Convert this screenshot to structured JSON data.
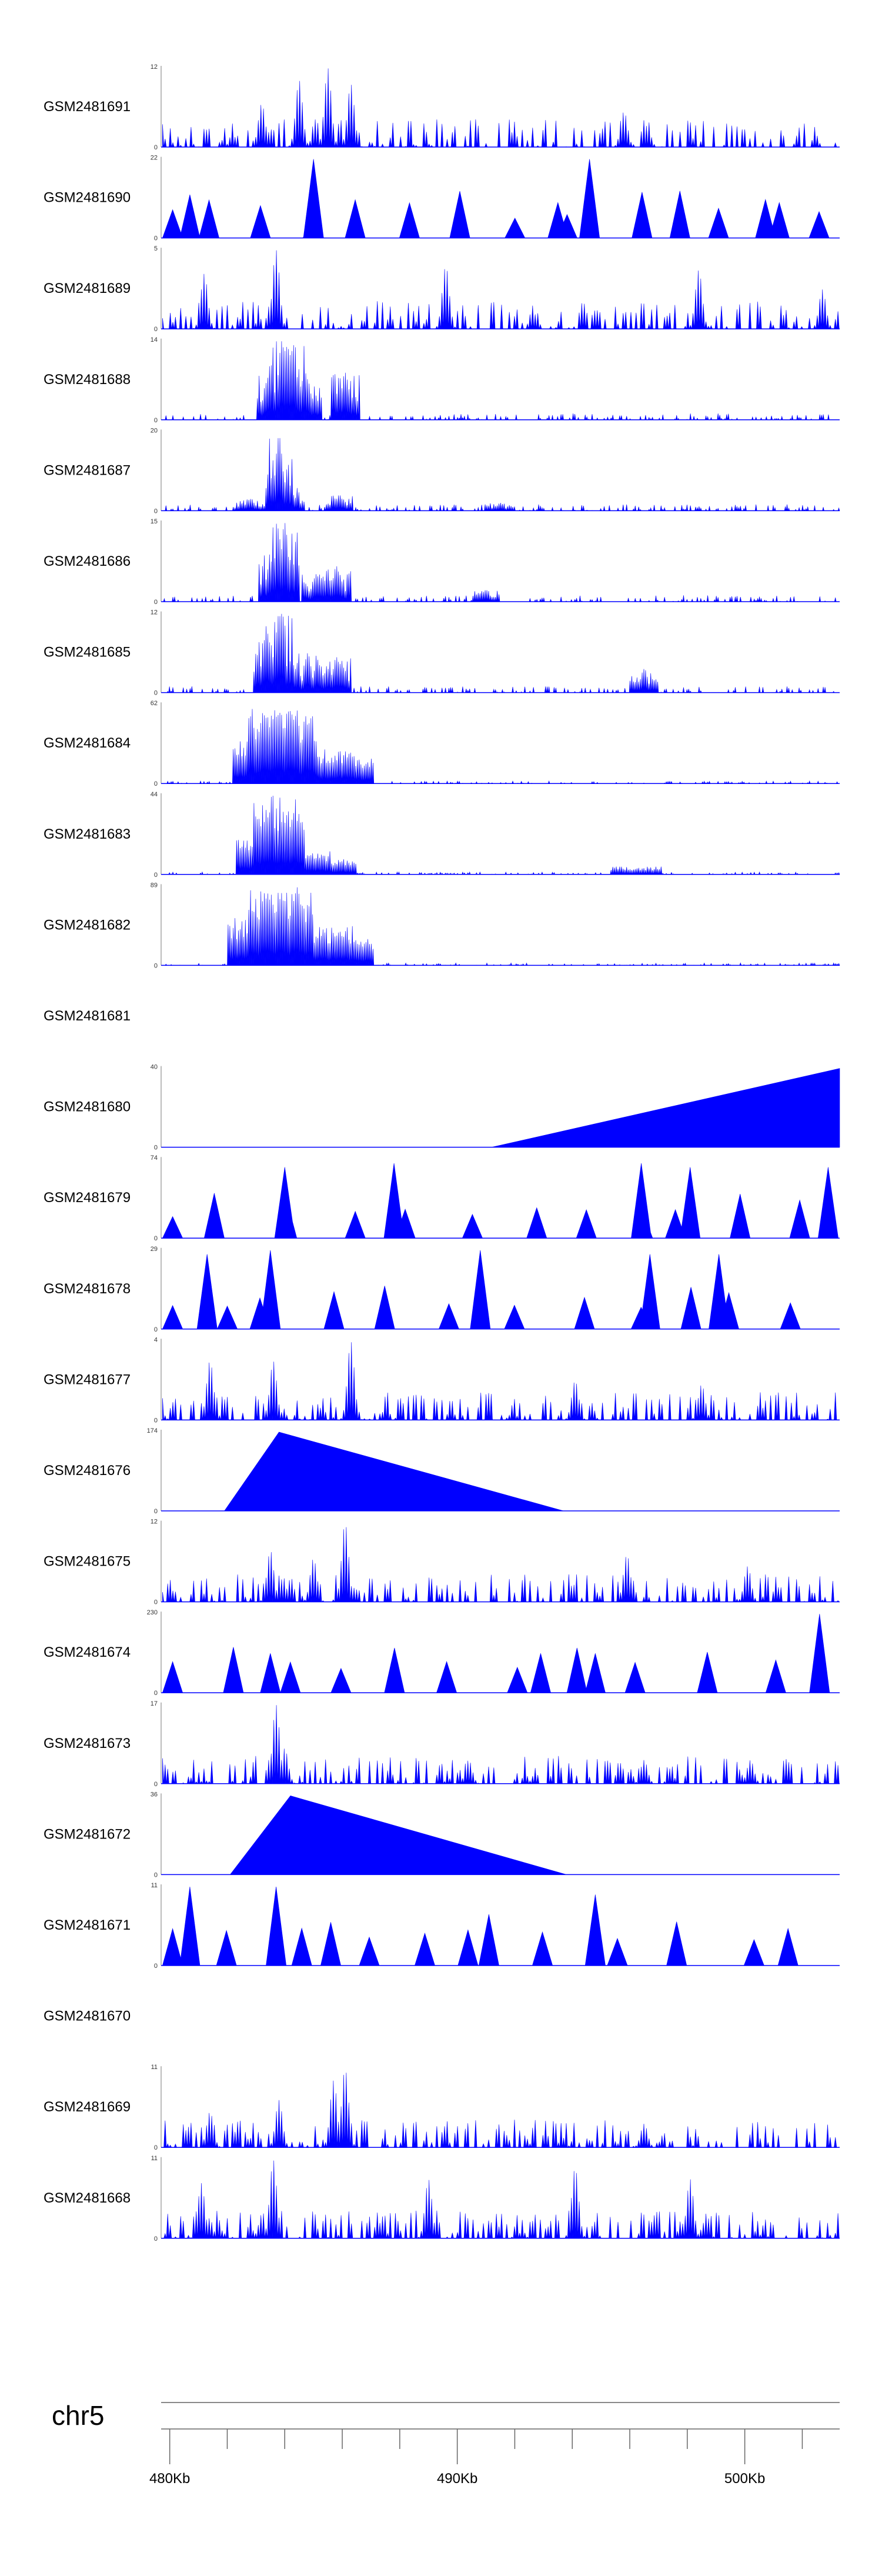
{
  "chart_data": {
    "type": "area",
    "chromosome": "chr5",
    "x_axis": {
      "ticks": [
        "480Kb",
        "490Kb",
        "500Kb"
      ],
      "minor_tick_step_kb": 2
    },
    "tracks": [
      {
        "name": "GSM2481691",
        "ymax": "12",
        "ymin": "0",
        "shape": "dense",
        "peaks": [
          [
            484.5,
            0.85
          ],
          [
            485.5,
            1.0
          ],
          [
            486.3,
            0.8
          ],
          [
            483.2,
            0.55
          ],
          [
            495.8,
            0.45
          ]
        ]
      },
      {
        "name": "GSM2481690",
        "ymax": "22",
        "ymin": "0",
        "shape": "sparse",
        "peaks": [
          [
            485.0,
            1.0
          ],
          [
            494.6,
            1.0
          ],
          [
            480.7,
            0.55
          ],
          [
            493.5,
            0.45
          ],
          [
            501.2,
            0.45
          ]
        ]
      },
      {
        "name": "GSM2481689",
        "ymax": "5",
        "ymin": "0",
        "shape": "dense",
        "peaks": [
          [
            483.7,
            1.0
          ],
          [
            489.6,
            0.8
          ],
          [
            481.2,
            0.7
          ],
          [
            498.4,
            0.75
          ],
          [
            502.7,
            0.5
          ]
        ]
      },
      {
        "name": "GSM2481688",
        "ymax": "14",
        "ymin": "0",
        "shape": "cluster",
        "peaks": [
          [
            483.9,
            1.0
          ],
          [
            484.3,
            0.95
          ],
          [
            483.5,
            0.7
          ],
          [
            486.1,
            0.6
          ],
          [
            484.8,
            0.5
          ]
        ]
      },
      {
        "name": "GSM2481687",
        "ymax": "20",
        "ymin": "0",
        "shape": "cluster",
        "peaks": [
          [
            483.8,
            0.95
          ],
          [
            484.2,
            0.3
          ],
          [
            485.9,
            0.2
          ],
          [
            482.8,
            0.15
          ],
          [
            491.5,
            0.1
          ]
        ]
      },
      {
        "name": "GSM2481686",
        "ymax": "15",
        "ymin": "0",
        "shape": "cluster",
        "peaks": [
          [
            484.0,
            1.0
          ],
          [
            483.6,
            0.6
          ],
          [
            485.8,
            0.45
          ],
          [
            485.1,
            0.35
          ],
          [
            491.0,
            0.15
          ]
        ]
      },
      {
        "name": "GSM2481685",
        "ymax": "12",
        "ymin": "0",
        "shape": "cluster",
        "peaks": [
          [
            483.8,
            1.0
          ],
          [
            483.4,
            0.75
          ],
          [
            484.8,
            0.5
          ],
          [
            485.8,
            0.45
          ],
          [
            496.5,
            0.3
          ]
        ]
      },
      {
        "name": "GSM2481684",
        "ymax": "62",
        "ymin": "0",
        "shape": "broad",
        "peaks": [
          [
            483.6,
            0.95
          ],
          [
            484.2,
            0.9
          ],
          [
            483.1,
            0.6
          ],
          [
            485.5,
            0.45
          ],
          [
            486.2,
            0.35
          ]
        ]
      },
      {
        "name": "GSM2481683",
        "ymax": "44",
        "ymin": "0",
        "shape": "broad",
        "peaks": [
          [
            483.8,
            1.0
          ],
          [
            483.2,
            0.5
          ],
          [
            484.7,
            0.3
          ],
          [
            485.6,
            0.2
          ],
          [
            496.2,
            0.1
          ]
        ]
      },
      {
        "name": "GSM2481682",
        "ymax": "89",
        "ymin": "0",
        "shape": "broad",
        "peaks": [
          [
            483.6,
            1.0
          ],
          [
            484.1,
            0.95
          ],
          [
            482.9,
            0.6
          ],
          [
            485.5,
            0.5
          ],
          [
            486.2,
            0.35
          ]
        ]
      },
      {
        "name": "GSM2481681",
        "ymax": "",
        "ymin": "",
        "shape": "empty",
        "peaks": []
      },
      {
        "name": "GSM2481680",
        "ymax": "40",
        "ymin": "0",
        "shape": "ramp",
        "peaks": [
          [
            491.2,
            0.0
          ],
          [
            503.3,
            1.0
          ]
        ]
      },
      {
        "name": "GSM2481679",
        "ymax": "74",
        "ymin": "0",
        "shape": "sparse",
        "peaks": [
          [
            484.0,
            0.9
          ],
          [
            487.8,
            0.95
          ],
          [
            496.4,
            0.95
          ],
          [
            498.1,
            0.9
          ],
          [
            502.9,
            0.9
          ]
        ]
      },
      {
        "name": "GSM2481678",
        "ymax": "29",
        "ymin": "0",
        "shape": "sparse",
        "peaks": [
          [
            481.3,
            0.95
          ],
          [
            483.5,
            1.0
          ],
          [
            490.8,
            1.0
          ],
          [
            496.7,
            0.95
          ],
          [
            499.1,
            0.95
          ]
        ]
      },
      {
        "name": "GSM2481677",
        "ymax": "4",
        "ymin": "0",
        "shape": "dense",
        "peaks": [
          [
            486.3,
            1.0
          ],
          [
            481.4,
            0.75
          ],
          [
            483.6,
            0.75
          ],
          [
            494.1,
            0.5
          ],
          [
            498.5,
            0.45
          ]
        ]
      },
      {
        "name": "GSM2481676",
        "ymax": "174",
        "ymin": "0",
        "shape": "triangle",
        "peaks": [
          [
            483.8,
            1.0
          ],
          [
            481.9,
            0.0
          ],
          [
            493.7,
            0.0
          ]
        ]
      },
      {
        "name": "GSM2481675",
        "ymax": "12",
        "ymin": "0",
        "shape": "dense",
        "peaks": [
          [
            486.1,
            1.0
          ],
          [
            483.5,
            0.65
          ],
          [
            485.0,
            0.55
          ],
          [
            495.9,
            0.6
          ],
          [
            500.1,
            0.45
          ]
        ]
      },
      {
        "name": "GSM2481674",
        "ymax": "230",
        "ymin": "0",
        "shape": "sparse",
        "peaks": [
          [
            483.5,
            0.5
          ],
          [
            492.9,
            0.5
          ],
          [
            494.8,
            0.5
          ],
          [
            502.6,
            1.0
          ]
        ]
      },
      {
        "name": "GSM2481673",
        "ymax": "17",
        "ymin": "0",
        "shape": "dense",
        "peaks": [
          [
            483.7,
            1.0
          ],
          [
            484.0,
            0.45
          ],
          [
            490.4,
            0.3
          ],
          [
            496.5,
            0.3
          ],
          [
            500.2,
            0.3
          ]
        ]
      },
      {
        "name": "GSM2481672",
        "ymax": "36",
        "ymin": "0",
        "shape": "triangle",
        "peaks": [
          [
            484.2,
            1.0
          ],
          [
            482.1,
            0.0
          ],
          [
            493.8,
            0.0
          ]
        ]
      },
      {
        "name": "GSM2481671",
        "ymax": "11",
        "ymin": "0",
        "shape": "sparse",
        "peaks": [
          [
            480.7,
            1.0
          ],
          [
            483.7,
            1.0
          ],
          [
            494.8,
            0.9
          ],
          [
            491.1,
            0.65
          ],
          [
            485.6,
            0.55
          ]
        ]
      },
      {
        "name": "GSM2481670",
        "ymax": "",
        "ymin": "",
        "shape": "empty",
        "peaks": []
      },
      {
        "name": "GSM2481669",
        "ymax": "11",
        "ymin": "0",
        "shape": "dense",
        "peaks": [
          [
            486.1,
            1.0
          ],
          [
            485.7,
            0.85
          ],
          [
            483.8,
            0.6
          ],
          [
            481.4,
            0.45
          ],
          [
            496.5,
            0.3
          ]
        ]
      },
      {
        "name": "GSM2481668",
        "ymax": "11",
        "ymin": "0",
        "shape": "dense",
        "peaks": [
          [
            483.6,
            1.0
          ],
          [
            494.1,
            0.9
          ],
          [
            498.1,
            0.75
          ],
          [
            489.0,
            0.75
          ],
          [
            481.1,
            0.7
          ]
        ]
      }
    ]
  }
}
